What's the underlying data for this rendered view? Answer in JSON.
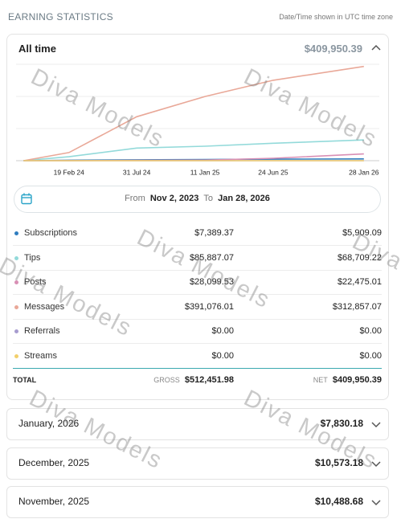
{
  "header": {
    "title": "EARNING STATISTICS",
    "note": "Date/Time shown in UTC time zone"
  },
  "summary": {
    "period": "All time",
    "total": "$409,950.39"
  },
  "chart_data": {
    "type": "line",
    "x": [
      "2023-11-02",
      "2024-02-19",
      "2024-07-31",
      "2025-01-11",
      "2025-06-24",
      "2026-01-28"
    ],
    "xlim": [
      "2023-10-15",
      "2026-03-06"
    ],
    "xticks": [
      {
        "value": "2024-02-19",
        "label": "19 Feb 24"
      },
      {
        "value": "2024-07-31",
        "label": "31 Jul 24"
      },
      {
        "value": "2025-01-11",
        "label": "11 Jan 25"
      },
      {
        "value": "2025-06-24",
        "label": "24 Jun 25"
      },
      {
        "value": "2026-01-28",
        "label": "28 Jan 26"
      }
    ],
    "ylim": [
      0,
      320000
    ],
    "series": [
      {
        "color": "#2f7dbf",
        "values": [
          0,
          1500,
          3000,
          4000,
          5000,
          5909
        ]
      },
      {
        "color": "#93dada",
        "values": [
          0,
          13000,
          42000,
          48000,
          58000,
          68709
        ]
      },
      {
        "color": "#d98fb5",
        "values": [
          0,
          200,
          1000,
          2000,
          8000,
          22475
        ]
      },
      {
        "color": "#e9a898",
        "values": [
          0,
          27000,
          146000,
          213000,
          267000,
          312857
        ]
      },
      {
        "color": "#a79ccf",
        "values": [
          0,
          0,
          0,
          0,
          0,
          0
        ]
      },
      {
        "color": "#f2cf6b",
        "values": [
          0,
          0,
          0,
          0,
          0,
          0
        ]
      }
    ]
  },
  "date_range": {
    "from_label": "From",
    "from": "Nov 2, 2023",
    "to_label": "To",
    "to": "Jan 28, 2026"
  },
  "rows": [
    {
      "label": "Subscriptions",
      "gross": "$7,389.37",
      "net": "$5,909.09"
    },
    {
      "label": "Tips",
      "gross": "$85,887.07",
      "net": "$68,709.22"
    },
    {
      "label": "Posts",
      "gross": "$28,099.53",
      "net": "$22,475.01"
    },
    {
      "label": "Messages",
      "gross": "$391,076.01",
      "net": "$312,857.07"
    },
    {
      "label": "Referrals",
      "gross": "$0.00",
      "net": "$0.00"
    },
    {
      "label": "Streams",
      "gross": "$0.00",
      "net": "$0.00"
    }
  ],
  "total": {
    "label": "TOTAL",
    "gross_label": "GROSS",
    "gross": "$512,451.98",
    "net_label": "NET",
    "net": "$409,950.39"
  },
  "months": [
    {
      "label": "January, 2026",
      "amount": "$7,830.18"
    },
    {
      "label": "December, 2025",
      "amount": "$10,573.18"
    },
    {
      "label": "November, 2025",
      "amount": "$10,488.68"
    }
  ],
  "watermark": "Diva Models"
}
